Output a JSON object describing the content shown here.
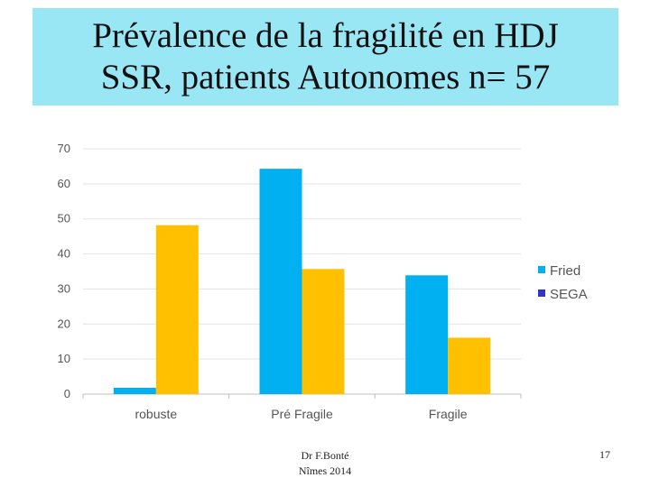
{
  "slide": {
    "title_line1": "Prévalence de la fragilité en HDJ",
    "title_line2": "SSR, patients Autonomes n= 57",
    "footer_author_line1": "Dr F.Bonté",
    "footer_author_line2": "Nîmes 2014",
    "slide_number": "17"
  },
  "chart_data": {
    "type": "bar",
    "categories": [
      "robuste",
      "Pré Fragile",
      "Fragile"
    ],
    "series": [
      {
        "name": "Fried",
        "values": [
          1.8,
          64.3,
          33.9
        ],
        "color": "#00b0f0"
      },
      {
        "name": "SEGA",
        "values": [
          48.2,
          35.7,
          16.1
        ],
        "color": "#ffc000"
      }
    ],
    "legend_swatch_colors": [
      "#00b0f0",
      "#3333cc"
    ],
    "yticks": [
      0,
      10,
      20,
      30,
      40,
      50,
      60,
      70
    ],
    "ylim": [
      0,
      70
    ],
    "grid": true,
    "legend_position": "right"
  }
}
